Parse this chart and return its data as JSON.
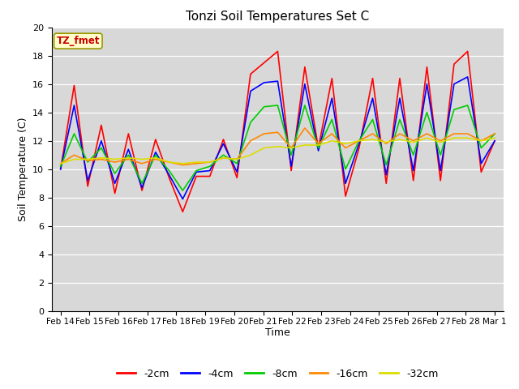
{
  "title": "Tonzi Soil Temperatures Set C",
  "xlabel": "Time",
  "ylabel": "Soil Temperature (C)",
  "ylim": [
    0,
    20
  ],
  "yticks": [
    0,
    2,
    4,
    6,
    8,
    10,
    12,
    14,
    16,
    18,
    20
  ],
  "bg_color": "#d8d8d8",
  "legend_label": "TZ_fmet",
  "series_names": [
    "-2cm",
    "-4cm",
    "-8cm",
    "-16cm",
    "-32cm"
  ],
  "series_colors": [
    "#ff0000",
    "#0000ff",
    "#00cc00",
    "#ff8800",
    "#dddd00"
  ],
  "xtick_labels": [
    "Feb 14",
    "Feb 15",
    "Feb 16",
    "Feb 17",
    "Feb 18",
    "Feb 19",
    "Feb 20",
    "Feb 21",
    "Feb 22",
    "Feb 23",
    "Feb 24",
    "Feb 25",
    "Feb 26",
    "Feb 27",
    "Feb 28",
    "Mar 1"
  ],
  "data_2cm": [
    10.0,
    15.9,
    8.8,
    13.1,
    8.3,
    12.5,
    8.5,
    12.1,
    9.4,
    7.0,
    9.5,
    9.5,
    12.1,
    9.4,
    16.7,
    17.5,
    18.3,
    9.9,
    17.2,
    11.5,
    16.4,
    8.1,
    11.5,
    16.4,
    9.0,
    16.4,
    9.2,
    17.2,
    9.2,
    17.4,
    18.3,
    9.8,
    12.0
  ],
  "data_4cm": [
    10.0,
    14.5,
    9.2,
    12.0,
    9.0,
    11.4,
    8.7,
    11.2,
    9.6,
    7.9,
    9.8,
    9.9,
    11.8,
    9.8,
    15.5,
    16.1,
    16.2,
    10.2,
    16.0,
    11.3,
    15.0,
    9.0,
    11.8,
    15.0,
    9.6,
    15.0,
    9.9,
    16.0,
    9.9,
    16.0,
    16.5,
    10.4,
    12.0
  ],
  "data_8cm": [
    10.2,
    12.5,
    10.5,
    11.5,
    9.7,
    11.0,
    9.0,
    11.0,
    9.9,
    8.5,
    9.9,
    10.2,
    11.0,
    10.4,
    13.3,
    14.4,
    14.5,
    11.0,
    14.5,
    11.5,
    13.5,
    10.0,
    12.0,
    13.5,
    10.3,
    13.5,
    11.0,
    14.0,
    11.0,
    14.2,
    14.5,
    11.5,
    12.5
  ],
  "data_16cm": [
    10.4,
    11.0,
    10.6,
    10.7,
    10.5,
    10.7,
    10.4,
    10.7,
    10.5,
    10.3,
    10.4,
    10.5,
    10.8,
    10.7,
    12.0,
    12.5,
    12.6,
    11.5,
    12.9,
    11.8,
    12.5,
    11.5,
    12.0,
    12.5,
    11.8,
    12.5,
    12.0,
    12.5,
    12.0,
    12.5,
    12.5,
    12.0,
    12.5
  ],
  "data_32cm": [
    10.4,
    10.7,
    10.7,
    10.8,
    10.7,
    10.8,
    10.7,
    10.8,
    10.5,
    10.4,
    10.5,
    10.5,
    10.8,
    10.7,
    11.0,
    11.5,
    11.6,
    11.5,
    11.7,
    11.7,
    12.0,
    11.8,
    12.0,
    12.1,
    11.9,
    12.1,
    11.9,
    12.2,
    11.9,
    12.2,
    12.2,
    12.0,
    12.2
  ]
}
